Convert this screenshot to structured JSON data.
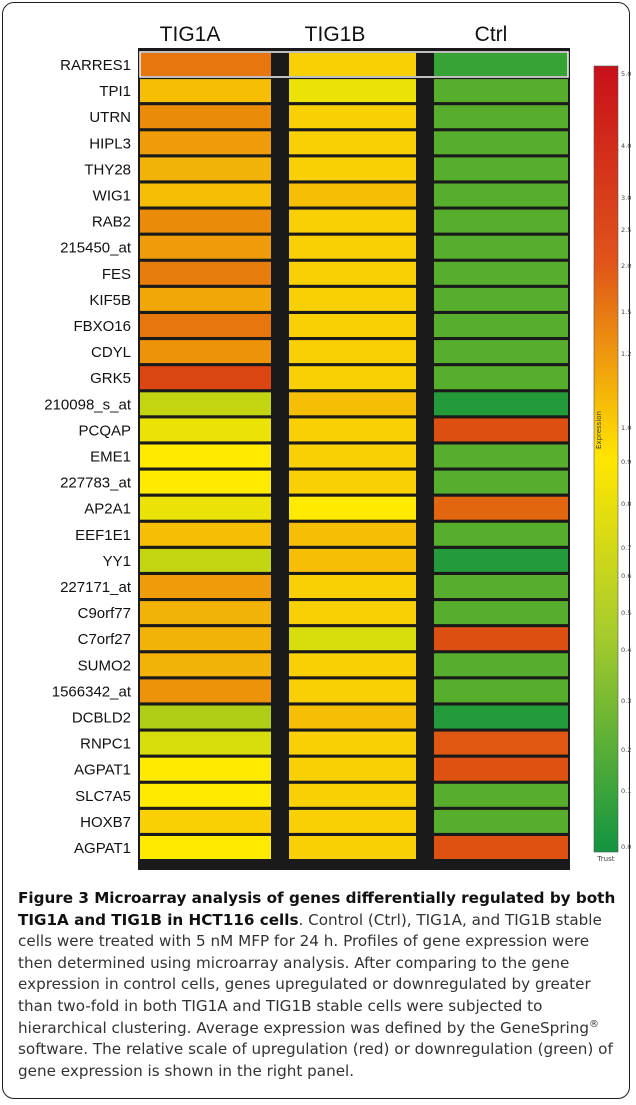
{
  "chart_data": {
    "type": "heatmap",
    "columns": [
      "TIG1A",
      "TIG1B",
      "Ctrl"
    ],
    "rows": [
      "RARRES1",
      "TPI1",
      "UTRN",
      "HIPL3",
      "THY28",
      "WIG1",
      "RAB2",
      "215450_at",
      "FES",
      "KIF5B",
      "FBXO16",
      "CDYL",
      "GRK5",
      "210098_s_at",
      "PCQAP",
      "EME1",
      "227783_at",
      "AP2A1",
      "EEF1E1",
      "YY1",
      "227171_at",
      "C9orf77",
      "C7orf27",
      "SUMO2",
      "1566342_at",
      "DCBLD2",
      "RNPC1",
      "AGPAT1",
      "SLC7A5",
      "HOXB7",
      "AGPAT1"
    ],
    "values": [
      [
        2.0,
        1.1,
        0.5
      ],
      [
        1.2,
        0.95,
        0.58
      ],
      [
        1.7,
        1.1,
        0.58
      ],
      [
        1.5,
        1.1,
        0.58
      ],
      [
        1.3,
        1.1,
        0.58
      ],
      [
        1.2,
        1.2,
        0.58
      ],
      [
        1.7,
        1.1,
        0.58
      ],
      [
        1.5,
        1.1,
        0.58
      ],
      [
        1.9,
        1.1,
        0.58
      ],
      [
        1.4,
        1.1,
        0.58
      ],
      [
        2.0,
        1.1,
        0.58
      ],
      [
        1.6,
        1.1,
        0.58
      ],
      [
        3.0,
        1.1,
        0.58
      ],
      [
        0.85,
        1.2,
        0.45
      ],
      [
        0.95,
        1.1,
        2.8
      ],
      [
        1.0,
        1.1,
        0.58
      ],
      [
        1.0,
        1.1,
        0.58
      ],
      [
        0.95,
        1.0,
        2.3
      ],
      [
        1.2,
        1.2,
        0.58
      ],
      [
        0.85,
        1.2,
        0.45
      ],
      [
        1.5,
        1.1,
        0.58
      ],
      [
        1.3,
        1.1,
        0.58
      ],
      [
        1.3,
        0.9,
        2.8
      ],
      [
        1.3,
        1.1,
        0.58
      ],
      [
        1.6,
        1.1,
        0.58
      ],
      [
        0.8,
        1.2,
        0.45
      ],
      [
        0.9,
        1.1,
        2.6
      ],
      [
        1.0,
        1.1,
        2.7
      ],
      [
        1.0,
        1.1,
        0.58
      ],
      [
        1.1,
        1.1,
        0.58
      ],
      [
        1.0,
        1.1,
        2.7
      ]
    ],
    "colorbar": {
      "title": "Expression",
      "bottom_label": "Trust",
      "ticks": [
        "5.0",
        "4.0",
        "3.0",
        "2.5",
        "2.0",
        "1.5",
        "1.2",
        "1.0",
        "0.9",
        "0.8",
        "0.7",
        "0.6",
        "0.5",
        "0.4",
        "0.3",
        "0.2",
        "0.1",
        "0.0"
      ],
      "colors": {
        "low": "#0f9440",
        "mid": "#ffea00",
        "high": "#d01018"
      }
    }
  },
  "caption": {
    "title": "Figure 3 Microarray analysis of genes differentially regulated by both TIG1A and TIG1B in HCT116 cells",
    "body_1": ". Control (Ctrl), TIG1A, and TIG1B stable cells were treated with 5 nM MFP for 24 h. Profiles of gene expression were then determined using microarray analysis. After comparing to the gene expression in control cells, genes upregulated or downregulated by greater than two-fold in both TIG1A and TIG1B stable cells were subjected to hierarchical clustering. Average expression was defined by the GeneSpring",
    "registered_mark": "®",
    "body_2": " software. The relative scale of upregulation (red) or downregulation (green) of gene expression is shown in the right panel."
  }
}
